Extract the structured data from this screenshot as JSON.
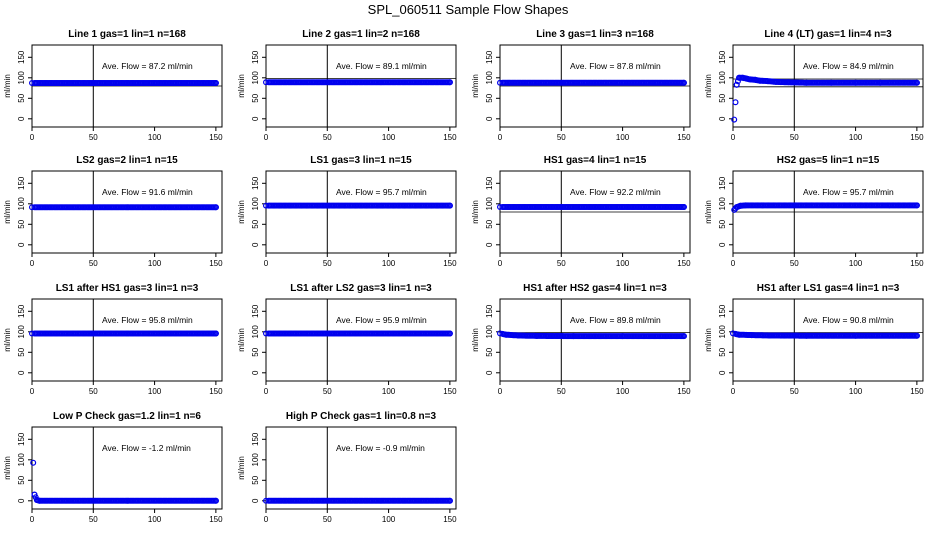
{
  "title": "SPL_060511  Sample Flow Shapes",
  "colors": {
    "points": "#0000ee",
    "axis": "#000000",
    "background": "#ffffff"
  },
  "chart_data": [
    {
      "type": "scatter",
      "title": "Line 1 gas=1 lin=1 n=168",
      "ylabel": "ml/min",
      "xlim": [
        0,
        155
      ],
      "ylim": [
        -20,
        180
      ],
      "xticks": [
        "0",
        "50",
        "100",
        "150"
      ],
      "yticks": [
        "0",
        "50",
        "100",
        "150"
      ],
      "vline": 50,
      "hlines": [
        80
      ],
      "annotation": "Ave. Flow =  87.2  ml/min",
      "series": [
        {
          "x": [
            0,
            150
          ],
          "y": [
            87.2,
            87.2
          ]
        }
      ]
    },
    {
      "type": "scatter",
      "title": "Line 2 gas=1 lin=2 n=168",
      "ylabel": "ml/min",
      "xlim": [
        0,
        155
      ],
      "ylim": [
        -20,
        180
      ],
      "xticks": [
        "0",
        "50",
        "100",
        "150"
      ],
      "yticks": [
        "0",
        "50",
        "100",
        "150"
      ],
      "vline": 50,
      "hlines": [
        98
      ],
      "annotation": "Ave. Flow =  89.1  ml/min",
      "series": [
        {
          "x": [
            0,
            150
          ],
          "y": [
            89.1,
            89.1
          ]
        }
      ]
    },
    {
      "type": "scatter",
      "title": "Line 3 gas=1 lin=3 n=168",
      "ylabel": "ml/min",
      "xlim": [
        0,
        155
      ],
      "ylim": [
        -20,
        180
      ],
      "xticks": [
        "0",
        "50",
        "100",
        "150"
      ],
      "yticks": [
        "0",
        "50",
        "100",
        "150"
      ],
      "vline": 50,
      "hlines": [
        80
      ],
      "annotation": "Ave. Flow =  87.8  ml/min",
      "series": [
        {
          "x": [
            0,
            150
          ],
          "y": [
            87.8,
            87.8
          ]
        }
      ]
    },
    {
      "type": "scatter",
      "title": "Line 4 (LT) gas=1 lin=4 n=3",
      "ylabel": "ml/min",
      "xlim": [
        0,
        155
      ],
      "ylim": [
        -20,
        180
      ],
      "xticks": [
        "0",
        "50",
        "100",
        "150"
      ],
      "yticks": [
        "0",
        "50",
        "100",
        "150"
      ],
      "vline": 50,
      "hlines": [
        97,
        78
      ],
      "annotation": "Ave. Flow =  84.9  ml/min",
      "series": [
        {
          "x": [
            1,
            3,
            5,
            8,
            11,
            14,
            18,
            22,
            28,
            35,
            45,
            60,
            80,
            100,
            120,
            150
          ],
          "y": [
            -2,
            83,
            100,
            100,
            98,
            96,
            95,
            93,
            92,
            90,
            89,
            88,
            88,
            88,
            88,
            88
          ]
        }
      ]
    },
    {
      "type": "scatter",
      "title": "LS2 gas=2 lin=1 n=15",
      "ylabel": "ml/min",
      "xlim": [
        0,
        155
      ],
      "ylim": [
        -20,
        180
      ],
      "xticks": [
        "0",
        "50",
        "100",
        "150"
      ],
      "yticks": [
        "0",
        "50",
        "100",
        "150"
      ],
      "vline": 50,
      "hlines": [],
      "annotation": "Ave. Flow =  91.6  ml/min",
      "series": [
        {
          "x": [
            0,
            150
          ],
          "y": [
            91.6,
            91.6
          ]
        }
      ]
    },
    {
      "type": "scatter",
      "title": "LS1 gas=3 lin=1 n=15",
      "ylabel": "ml/min",
      "xlim": [
        0,
        155
      ],
      "ylim": [
        -20,
        180
      ],
      "xticks": [
        "0",
        "50",
        "100",
        "150"
      ],
      "yticks": [
        "0",
        "50",
        "100",
        "150"
      ],
      "vline": 50,
      "hlines": [],
      "annotation": "Ave. Flow =  95.7  ml/min",
      "series": [
        {
          "x": [
            0,
            150
          ],
          "y": [
            95.7,
            95.7
          ]
        }
      ]
    },
    {
      "type": "scatter",
      "title": "HS1 gas=4 lin=1 n=15",
      "ylabel": "ml/min",
      "xlim": [
        0,
        155
      ],
      "ylim": [
        -20,
        180
      ],
      "xticks": [
        "0",
        "50",
        "100",
        "150"
      ],
      "yticks": [
        "0",
        "50",
        "100",
        "150"
      ],
      "vline": 50,
      "hlines": [
        80
      ],
      "annotation": "Ave. Flow =  92.2  ml/min",
      "series": [
        {
          "x": [
            0,
            150
          ],
          "y": [
            92.2,
            92.2
          ]
        }
      ]
    },
    {
      "type": "scatter",
      "title": "HS2 gas=5 lin=1 n=15",
      "ylabel": "ml/min",
      "xlim": [
        0,
        155
      ],
      "ylim": [
        -20,
        180
      ],
      "xticks": [
        "0",
        "50",
        "100",
        "150"
      ],
      "yticks": [
        "0",
        "50",
        "100",
        "150"
      ],
      "vline": 50,
      "hlines": [
        80
      ],
      "annotation": "Ave. Flow =  95.7  ml/min",
      "series": [
        {
          "x": [
            1,
            3,
            6,
            10,
            150
          ],
          "y": [
            85,
            92,
            95,
            96,
            96
          ]
        }
      ]
    },
    {
      "type": "scatter",
      "title": "LS1 after HS1 gas=3 lin=1 n=3",
      "ylabel": "ml/min",
      "xlim": [
        0,
        155
      ],
      "ylim": [
        -20,
        180
      ],
      "xticks": [
        "0",
        "50",
        "100",
        "150"
      ],
      "yticks": [
        "0",
        "50",
        "100",
        "150"
      ],
      "vline": 50,
      "hlines": [],
      "annotation": "Ave. Flow =  95.8  ml/min",
      "series": [
        {
          "x": [
            0,
            150
          ],
          "y": [
            95.8,
            95.8
          ]
        }
      ]
    },
    {
      "type": "scatter",
      "title": "LS1 after LS2 gas=3 lin=1 n=3",
      "ylabel": "ml/min",
      "xlim": [
        0,
        155
      ],
      "ylim": [
        -20,
        180
      ],
      "xticks": [
        "0",
        "50",
        "100",
        "150"
      ],
      "yticks": [
        "0",
        "50",
        "100",
        "150"
      ],
      "vline": 50,
      "hlines": [],
      "annotation": "Ave. Flow =  95.9  ml/min",
      "series": [
        {
          "x": [
            0,
            150
          ],
          "y": [
            95.9,
            95.9
          ]
        }
      ]
    },
    {
      "type": "scatter",
      "title": "HS1 after HS2 gas=4 lin=1 n=3",
      "ylabel": "ml/min",
      "xlim": [
        0,
        155
      ],
      "ylim": [
        -20,
        180
      ],
      "xticks": [
        "0",
        "50",
        "100",
        "150"
      ],
      "yticks": [
        "0",
        "50",
        "100",
        "150"
      ],
      "vline": 50,
      "hlines": [
        98
      ],
      "annotation": "Ave. Flow =  89.8  ml/min",
      "series": [
        {
          "x": [
            0,
            5,
            15,
            30,
            60,
            100,
            150
          ],
          "y": [
            96,
            93,
            91,
            90,
            89.5,
            89.5,
            89.5
          ]
        }
      ]
    },
    {
      "type": "scatter",
      "title": "HS1 after LS1 gas=4 lin=1 n=3",
      "ylabel": "ml/min",
      "xlim": [
        0,
        155
      ],
      "ylim": [
        -20,
        180
      ],
      "xticks": [
        "0",
        "50",
        "100",
        "150"
      ],
      "yticks": [
        "0",
        "50",
        "100",
        "150"
      ],
      "vline": 50,
      "hlines": [
        98
      ],
      "annotation": "Ave. Flow =  90.8  ml/min",
      "series": [
        {
          "x": [
            0,
            5,
            15,
            30,
            60,
            100,
            150
          ],
          "y": [
            96,
            93,
            92,
            91,
            90.5,
            90.5,
            90.5
          ]
        }
      ]
    },
    {
      "type": "scatter",
      "title": "Low P Check gas=1.2 lin=1 n=6",
      "ylabel": "ml/min",
      "xlim": [
        0,
        155
      ],
      "ylim": [
        -20,
        180
      ],
      "xticks": [
        "0",
        "50",
        "100",
        "150"
      ],
      "yticks": [
        "0",
        "50",
        "100",
        "150"
      ],
      "vline": 50,
      "hlines": [],
      "annotation": "Ave. Flow =  -1.2  ml/min",
      "series": [
        {
          "x": [
            1,
            2,
            4,
            6,
            150
          ],
          "y": [
            93,
            15,
            2,
            0,
            0
          ]
        }
      ]
    },
    {
      "type": "scatter",
      "title": "High P Check gas=1 lin=0.8 n=3",
      "ylabel": "ml/min",
      "xlim": [
        0,
        155
      ],
      "ylim": [
        -20,
        180
      ],
      "xticks": [
        "0",
        "50",
        "100",
        "150"
      ],
      "yticks": [
        "0",
        "50",
        "100",
        "150"
      ],
      "vline": 50,
      "hlines": [],
      "annotation": "Ave. Flow =  -0.9  ml/min",
      "series": [
        {
          "x": [
            0,
            150
          ],
          "y": [
            0,
            0
          ]
        }
      ]
    }
  ]
}
